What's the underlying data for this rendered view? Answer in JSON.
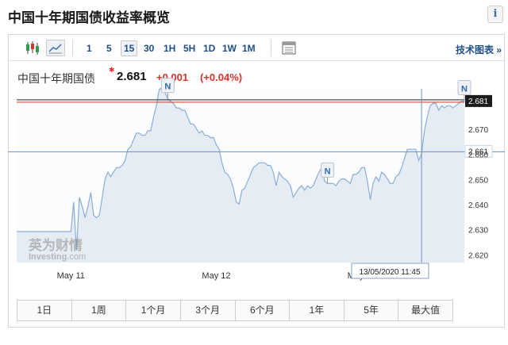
{
  "page_title": "中国十年期国债收益率概览",
  "info_label": "i",
  "toolbar": {
    "timeframes": [
      "1",
      "5",
      "15",
      "30",
      "1H",
      "5H",
      "1D",
      "1W",
      "1M"
    ],
    "selected_timeframe": "15",
    "tech_chart_link": "技术图表 »"
  },
  "quote": {
    "name": "中国十年期国债",
    "price": "2.681",
    "change": "+0.001",
    "change_pct": "(+0.04%)"
  },
  "watermark": {
    "cn": "英为财情",
    "en": "Investing",
    "suffix": ".com"
  },
  "chart_data": {
    "type": "area",
    "title": "",
    "xlabel": "",
    "ylabel": "",
    "ylim": [
      2.617,
      2.686
    ],
    "ytick_labels": [
      "2.620",
      "2.630",
      "2.640",
      "2.650",
      "2.660",
      "2.670"
    ],
    "ytick_values": [
      2.62,
      2.63,
      2.64,
      2.65,
      2.66,
      2.67
    ],
    "xtick_labels": [
      "May 11",
      "May 12",
      "May 13"
    ],
    "xtick_index": [
      19,
      70,
      121
    ],
    "series": [
      {
        "values": [
          2.6293,
          2.6293,
          2.6293,
          2.6293,
          2.6293,
          2.6293,
          2.6293,
          2.6293,
          2.6293,
          2.6293,
          2.6293,
          2.6293,
          2.6293,
          2.6293,
          2.6293,
          2.6293,
          2.6293,
          2.6293,
          2.6293,
          2.6293,
          2.6411,
          2.6218,
          2.6429,
          2.6393,
          2.6348,
          2.6393,
          2.6448,
          2.6357,
          2.6348,
          2.6357,
          2.6429,
          2.6502,
          2.6529,
          2.6511,
          2.6529,
          2.6547,
          2.6547,
          2.6556,
          2.6575,
          2.662,
          2.663,
          2.6658,
          2.6684,
          2.6684,
          2.6675,
          2.6675,
          2.6693,
          2.6693,
          2.6748,
          2.6793,
          2.6857,
          2.6866,
          2.6848,
          2.682,
          2.6811,
          2.6802,
          2.6784,
          2.6784,
          2.6775,
          2.6775,
          2.6748,
          2.672,
          2.672,
          2.6702,
          2.6684,
          2.6693,
          2.6675,
          2.6675,
          2.6666,
          2.6666,
          2.6638,
          2.662,
          2.6566,
          2.6529,
          2.652,
          2.6502,
          2.6466,
          2.6411,
          2.6402,
          2.6457,
          2.6466,
          2.6493,
          2.652,
          2.6547,
          2.6556,
          2.6566,
          2.6566,
          2.6566,
          2.6556,
          2.6556,
          2.6529,
          2.6475,
          2.6529,
          2.6511,
          2.6502,
          2.6493,
          2.6475,
          2.6429,
          2.6448,
          2.6466,
          2.6475,
          2.6457,
          2.6475,
          2.6466,
          2.6475,
          2.6502,
          2.6529,
          2.6547,
          2.6493,
          2.6484,
          2.6484,
          2.6484,
          2.6475,
          2.6493,
          2.6502,
          2.6502,
          2.6493,
          2.6484,
          2.652,
          2.652,
          2.6529,
          2.6547,
          2.6547,
          2.6493,
          2.642,
          2.6484,
          2.6511,
          2.6493,
          2.6529,
          2.652,
          2.6502,
          2.6484,
          2.6484,
          2.6511,
          2.652,
          2.6547,
          2.6584,
          2.662,
          2.662,
          2.662,
          2.662,
          2.6575,
          2.6602,
          2.6693,
          2.6748,
          2.6793,
          2.6802,
          2.6802,
          2.6775,
          2.6793,
          2.6784,
          2.6793,
          2.6793,
          2.6784,
          2.6793,
          2.6802,
          2.6811,
          2.6811
        ]
      }
    ],
    "reference_lines": [
      {
        "label": "2.681",
        "value": 2.681,
        "color": "#c0392b"
      },
      {
        "label": "2.661",
        "value": 2.661,
        "color": "#6d91bf"
      }
    ],
    "crosshair_label": "13/05/2020 11:45",
    "crosshair_index": 142,
    "news_markers": [
      {
        "label": "N",
        "index": 53
      },
      {
        "label": "N",
        "index": 109
      },
      {
        "label": "N",
        "index": 157
      }
    ],
    "grid": false,
    "colors": {
      "line": "#8aaed6",
      "fill": "#e6ecf3",
      "axis_text": "#333333"
    }
  },
  "range_buttons": [
    "1日",
    "1周",
    "1个月",
    "3个月",
    "6个月",
    "1年",
    "5年",
    "最大值"
  ]
}
